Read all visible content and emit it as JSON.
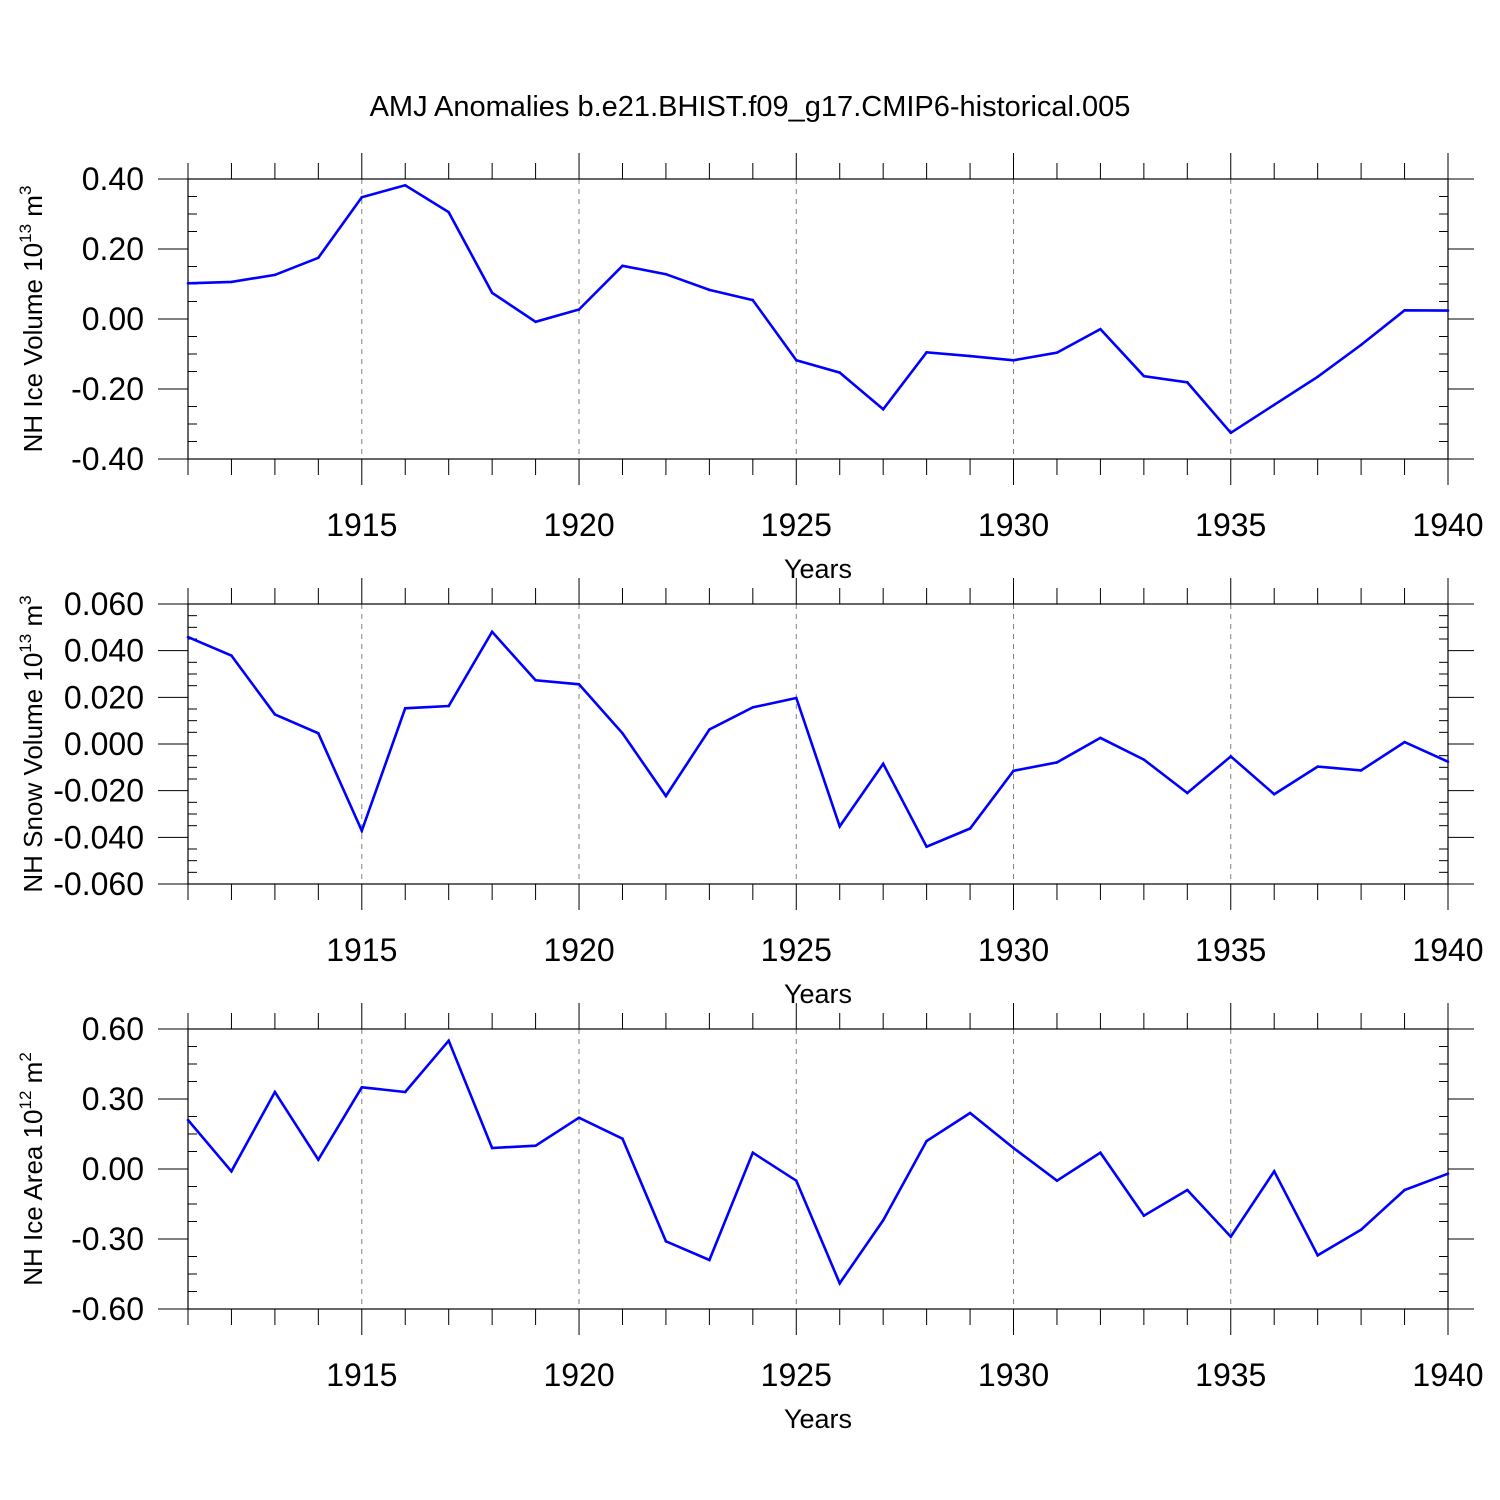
{
  "chart_data": {
    "title": "AMJ Anomalies b.e21.BHIST.f09_g17.CMIP6-historical.005",
    "type": "line",
    "line_color": "#0000ff",
    "panels": [
      {
        "type": "line",
        "xlabel": "Years",
        "ylabel_main": "NH Ice Volume 10",
        "ylabel_exp": "13",
        "ylabel_unit": " m",
        "ylabel_unit_exp": "3",
        "ylim": [
          -0.4,
          0.4
        ],
        "xlim": [
          1911,
          1940
        ],
        "y_ticks": [
          "0.40",
          "0.20",
          "0.00",
          "-0.20",
          "-0.40"
        ],
        "y_tick_values": [
          0.4,
          0.2,
          0.0,
          -0.2,
          -0.4
        ],
        "x_ticks": [
          "1915",
          "1920",
          "1925",
          "1930",
          "1935",
          "1940"
        ],
        "x_tick_values": [
          1915,
          1920,
          1925,
          1930,
          1935,
          1940
        ],
        "grid": "vertical dashed at major x ticks",
        "x": [
          1911,
          1912,
          1913,
          1914,
          1915,
          1916,
          1917,
          1918,
          1919,
          1920,
          1921,
          1922,
          1923,
          1924,
          1925,
          1926,
          1927,
          1928,
          1929,
          1930,
          1931,
          1932,
          1933,
          1934,
          1935,
          1936,
          1937,
          1938,
          1939,
          1940
        ],
        "values": [
          0.102,
          0.106,
          0.126,
          0.175,
          0.348,
          0.382,
          0.305,
          0.075,
          -0.008,
          0.027,
          0.152,
          0.128,
          0.083,
          0.054,
          -0.118,
          -0.153,
          -0.258,
          -0.095,
          -0.106,
          -0.118,
          -0.096,
          -0.029,
          -0.163,
          -0.181,
          -0.325,
          -0.245,
          -0.165,
          -0.074,
          0.025,
          0.024
        ]
      },
      {
        "type": "line",
        "xlabel": "Years",
        "ylabel_main": "NH Snow Volume 10",
        "ylabel_exp": "13",
        "ylabel_unit": " m",
        "ylabel_unit_exp": "3",
        "ylim": [
          -0.06,
          0.06
        ],
        "xlim": [
          1911,
          1940
        ],
        "y_ticks": [
          "0.060",
          "0.040",
          "0.020",
          "0.000",
          "-0.020",
          "-0.040",
          "-0.060"
        ],
        "y_tick_values": [
          0.06,
          0.04,
          0.02,
          0.0,
          -0.02,
          -0.04,
          -0.06
        ],
        "x_ticks": [
          "1915",
          "1920",
          "1925",
          "1930",
          "1935",
          "1940"
        ],
        "x_tick_values": [
          1915,
          1920,
          1925,
          1930,
          1935,
          1940
        ],
        "grid": "vertical dashed at major x ticks",
        "x": [
          1911,
          1912,
          1913,
          1914,
          1915,
          1916,
          1917,
          1918,
          1919,
          1920,
          1921,
          1922,
          1923,
          1924,
          1925,
          1926,
          1927,
          1928,
          1929,
          1930,
          1931,
          1932,
          1933,
          1934,
          1935,
          1936,
          1937,
          1938,
          1939,
          1940
        ],
        "values": [
          0.0458,
          0.0379,
          0.0127,
          0.0046,
          -0.0372,
          0.0153,
          0.0163,
          0.0481,
          0.0273,
          0.0256,
          0.0046,
          -0.0223,
          0.0062,
          0.0157,
          0.0197,
          -0.0353,
          -0.0085,
          -0.044,
          -0.0362,
          -0.0115,
          -0.0079,
          0.0026,
          -0.0067,
          -0.021,
          -0.0053,
          -0.0215,
          -0.0097,
          -0.0113,
          0.0008,
          -0.0076
        ]
      },
      {
        "type": "line",
        "xlabel": "Years",
        "ylabel_main": "NH Ice Area 10",
        "ylabel_exp": "12",
        "ylabel_unit": " m",
        "ylabel_unit_exp": "2",
        "ylim": [
          -0.6,
          0.6
        ],
        "xlim": [
          1911,
          1940
        ],
        "y_ticks": [
          "0.60",
          "0.30",
          "0.00",
          "-0.30",
          "-0.60"
        ],
        "y_tick_values": [
          0.6,
          0.3,
          0.0,
          -0.3,
          -0.6
        ],
        "x_ticks": [
          "1915",
          "1920",
          "1925",
          "1930",
          "1935",
          "1940"
        ],
        "x_tick_values": [
          1915,
          1920,
          1925,
          1930,
          1935,
          1940
        ],
        "grid": "vertical dashed at major x ticks",
        "x": [
          1911,
          1912,
          1913,
          1914,
          1915,
          1916,
          1917,
          1918,
          1919,
          1920,
          1921,
          1922,
          1923,
          1924,
          1925,
          1926,
          1927,
          1928,
          1929,
          1930,
          1931,
          1932,
          1933,
          1934,
          1935,
          1936,
          1937,
          1938,
          1939,
          1940
        ],
        "values": [
          0.21,
          -0.01,
          0.33,
          0.04,
          0.35,
          0.33,
          0.55,
          0.09,
          0.1,
          0.22,
          0.13,
          -0.31,
          -0.39,
          0.07,
          -0.05,
          -0.49,
          -0.22,
          0.12,
          0.24,
          0.09,
          -0.05,
          0.07,
          -0.2,
          -0.09,
          -0.29,
          -0.01,
          -0.37,
          -0.26,
          -0.09,
          -0.02
        ]
      }
    ]
  }
}
